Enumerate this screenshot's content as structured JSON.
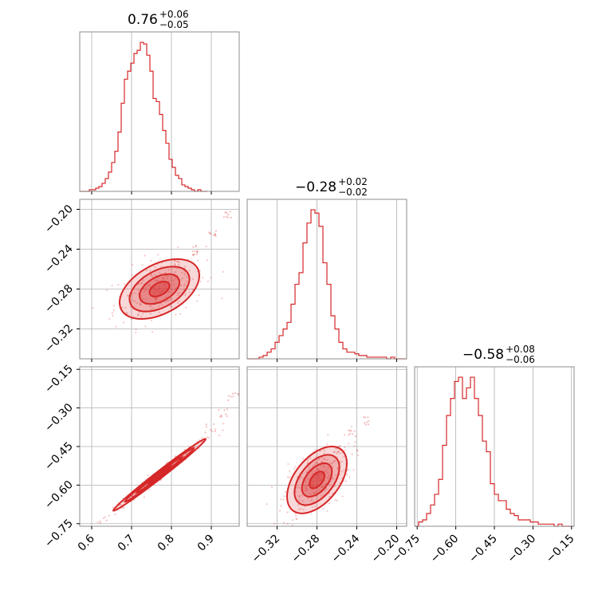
{
  "chart_data": {
    "type": "corner",
    "color": "#d62728",
    "params": [
      {
        "id": "p1",
        "range": [
          0.57,
          0.97
        ],
        "ticks": [
          0.6,
          0.7,
          0.8,
          0.9
        ],
        "tick_labels": [
          "0.6",
          "0.7",
          "0.8",
          "0.9"
        ],
        "title": {
          "median": "0.76",
          "plus": "+0.06",
          "minus": "−0.05"
        },
        "hist": {
          "bin_start": 0.57,
          "bin_width": 0.008,
          "counts": [
            0,
            0,
            0,
            1,
            1,
            2,
            3,
            5,
            8,
            12,
            18,
            25,
            37,
            55,
            70,
            75,
            80,
            86,
            88,
            93,
            92,
            85,
            75,
            58,
            56,
            48,
            38,
            30,
            20,
            15,
            10,
            8,
            4,
            3,
            2,
            1,
            0,
            1,
            0,
            0
          ]
        }
      },
      {
        "id": "p2",
        "range": [
          -0.35,
          -0.19
        ],
        "ticks": [
          -0.32,
          -0.28,
          -0.24,
          -0.2
        ],
        "tick_labels": [
          "−0.32",
          "−0.28",
          "−0.24",
          "−0.20"
        ],
        "title": {
          "median": "−0.28",
          "plus": "+0.02",
          "minus": "−0.02"
        },
        "hist": {
          "bin_start": -0.35,
          "bin_width": 0.004,
          "counts": [
            0,
            0,
            0,
            1,
            2,
            4,
            6,
            10,
            14,
            18,
            22,
            33,
            45,
            52,
            70,
            82,
            90,
            88,
            80,
            58,
            45,
            26,
            18,
            10,
            6,
            4,
            4,
            3,
            2,
            2,
            1,
            1,
            1,
            1,
            1,
            0,
            1,
            0,
            0,
            0
          ]
        }
      },
      {
        "id": "p3",
        "range": [
          -0.76,
          -0.14
        ],
        "ticks": [
          -0.75,
          -0.6,
          -0.45,
          -0.3,
          -0.15
        ],
        "tick_labels": [
          "−0.75",
          "−0.60",
          "−0.45",
          "−0.30",
          "−0.15"
        ],
        "title": {
          "median": "−0.58",
          "plus": "+0.08",
          "minus": "−0.06"
        },
        "hist": {
          "bin_start": -0.76,
          "bin_width": 0.0155,
          "counts": [
            0,
            2,
            3,
            6,
            10,
            15,
            22,
            38,
            52,
            60,
            68,
            70,
            60,
            65,
            70,
            60,
            52,
            40,
            35,
            20,
            15,
            12,
            12,
            8,
            6,
            5,
            3,
            3,
            3,
            2,
            2,
            1,
            1,
            1,
            1,
            0,
            1,
            0,
            0,
            0
          ]
        }
      }
    ],
    "pairs": [
      {
        "x": "p1",
        "y": "p2",
        "center": [
          0.77,
          -0.28
        ],
        "sd": [
          0.05,
          0.015
        ],
        "rho": 0.45,
        "tail": [
          [
            0.82,
            -0.255
          ],
          [
            0.86,
            -0.24
          ],
          [
            0.9,
            -0.225
          ],
          [
            0.94,
            -0.205
          ]
        ]
      },
      {
        "x": "p1",
        "y": "p3",
        "center": [
          0.77,
          -0.56
        ],
        "sd": [
          0.058,
          0.07
        ],
        "rho": 0.992,
        "tail": [
          [
            0.9,
            -0.38
          ],
          [
            0.93,
            -0.32
          ],
          [
            0.955,
            -0.26
          ]
        ]
      },
      {
        "x": "p2",
        "y": "p3",
        "center": [
          -0.28,
          -0.58
        ],
        "sd": [
          0.015,
          0.065
        ],
        "rho": 0.5,
        "tail": [
          [
            -0.26,
            -0.46
          ],
          [
            -0.245,
            -0.4
          ],
          [
            -0.23,
            -0.35
          ]
        ]
      }
    ]
  }
}
